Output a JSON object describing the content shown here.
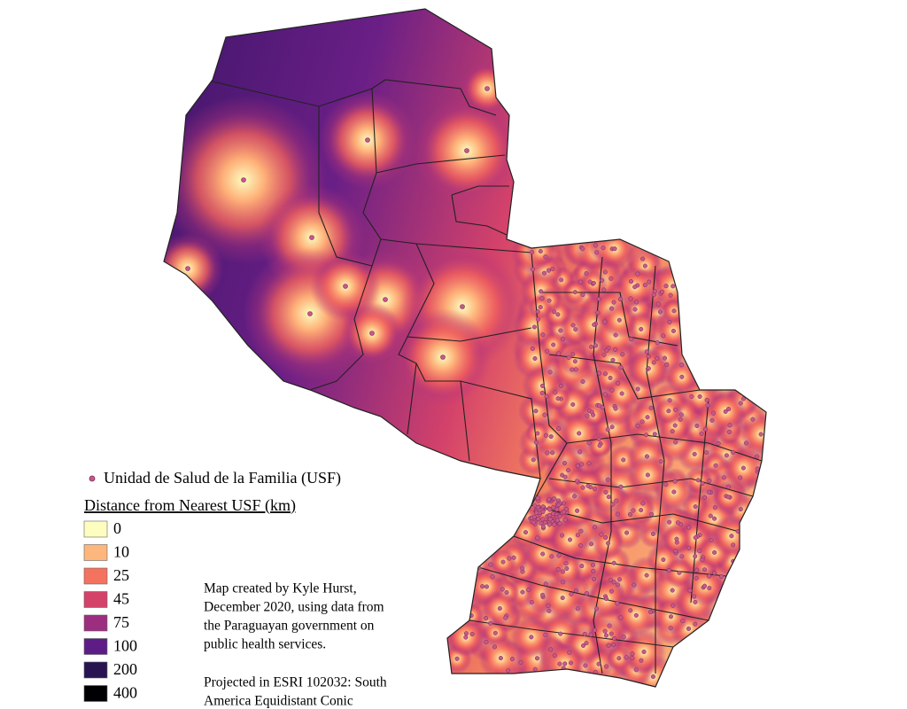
{
  "legend": {
    "point_label": "Unidad de Salud de la Familia (USF)",
    "title": "Distance from Nearest USF (km)",
    "classes": [
      {
        "value": 0,
        "color": "#fcfdbf"
      },
      {
        "value": 10,
        "color": "#fdb67c"
      },
      {
        "value": 25,
        "color": "#f4735e"
      },
      {
        "value": 45,
        "color": "#d4426a"
      },
      {
        "value": 75,
        "color": "#9c2e7f"
      },
      {
        "value": 100,
        "color": "#5e1c87"
      },
      {
        "value": 200,
        "color": "#271451"
      },
      {
        "value": 400,
        "color": "#000004"
      }
    ]
  },
  "credits": [
    [
      "Map created by Kyle Hurst,",
      "December 2020, using data from",
      "the Paraguayan government on",
      "public health services."
    ],
    [
      "Projected in ESRI 102032: South",
      "America Equidistant Conic"
    ]
  ]
}
